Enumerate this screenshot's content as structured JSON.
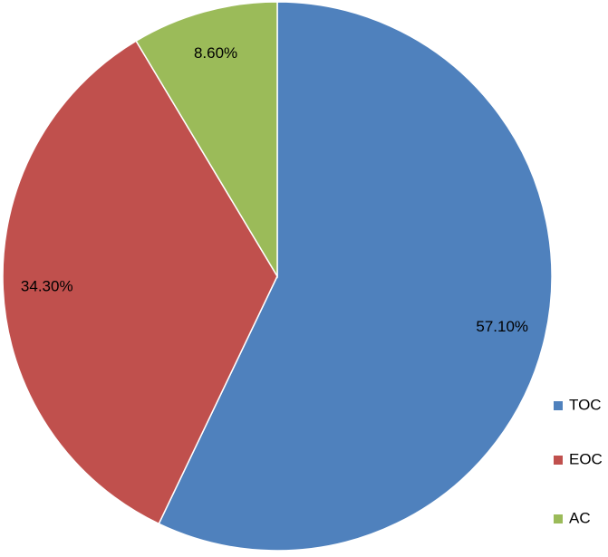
{
  "chart_data": {
    "type": "pie",
    "categories": [
      "TOC",
      "EOC",
      "AC"
    ],
    "values": [
      57.1,
      34.3,
      8.6
    ],
    "value_labels": [
      "57.10%",
      "34.30%",
      "8.60%"
    ],
    "colors": [
      "#4f81bd",
      "#c0504d",
      "#9bbb59"
    ],
    "legend": "right"
  }
}
